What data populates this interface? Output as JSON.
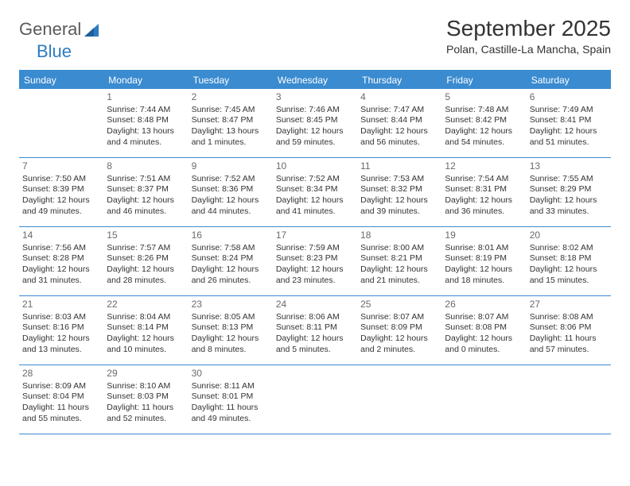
{
  "brand": {
    "general": "General",
    "blue": "Blue"
  },
  "title": "September 2025",
  "location": "Polan, Castille-La Mancha, Spain",
  "colors": {
    "accent": "#3a8bd0",
    "brand_blue": "#2d7bc0",
    "text": "#333333",
    "muted": "#6a6a6a",
    "background": "#ffffff"
  },
  "weekdays": [
    "Sunday",
    "Monday",
    "Tuesday",
    "Wednesday",
    "Thursday",
    "Friday",
    "Saturday"
  ],
  "weeks": [
    [
      {
        "n": "",
        "sr": "",
        "ss": "",
        "dl": ""
      },
      {
        "n": "1",
        "sr": "Sunrise: 7:44 AM",
        "ss": "Sunset: 8:48 PM",
        "dl": "Daylight: 13 hours and 4 minutes."
      },
      {
        "n": "2",
        "sr": "Sunrise: 7:45 AM",
        "ss": "Sunset: 8:47 PM",
        "dl": "Daylight: 13 hours and 1 minutes."
      },
      {
        "n": "3",
        "sr": "Sunrise: 7:46 AM",
        "ss": "Sunset: 8:45 PM",
        "dl": "Daylight: 12 hours and 59 minutes."
      },
      {
        "n": "4",
        "sr": "Sunrise: 7:47 AM",
        "ss": "Sunset: 8:44 PM",
        "dl": "Daylight: 12 hours and 56 minutes."
      },
      {
        "n": "5",
        "sr": "Sunrise: 7:48 AM",
        "ss": "Sunset: 8:42 PM",
        "dl": "Daylight: 12 hours and 54 minutes."
      },
      {
        "n": "6",
        "sr": "Sunrise: 7:49 AM",
        "ss": "Sunset: 8:41 PM",
        "dl": "Daylight: 12 hours and 51 minutes."
      }
    ],
    [
      {
        "n": "7",
        "sr": "Sunrise: 7:50 AM",
        "ss": "Sunset: 8:39 PM",
        "dl": "Daylight: 12 hours and 49 minutes."
      },
      {
        "n": "8",
        "sr": "Sunrise: 7:51 AM",
        "ss": "Sunset: 8:37 PM",
        "dl": "Daylight: 12 hours and 46 minutes."
      },
      {
        "n": "9",
        "sr": "Sunrise: 7:52 AM",
        "ss": "Sunset: 8:36 PM",
        "dl": "Daylight: 12 hours and 44 minutes."
      },
      {
        "n": "10",
        "sr": "Sunrise: 7:52 AM",
        "ss": "Sunset: 8:34 PM",
        "dl": "Daylight: 12 hours and 41 minutes."
      },
      {
        "n": "11",
        "sr": "Sunrise: 7:53 AM",
        "ss": "Sunset: 8:32 PM",
        "dl": "Daylight: 12 hours and 39 minutes."
      },
      {
        "n": "12",
        "sr": "Sunrise: 7:54 AM",
        "ss": "Sunset: 8:31 PM",
        "dl": "Daylight: 12 hours and 36 minutes."
      },
      {
        "n": "13",
        "sr": "Sunrise: 7:55 AM",
        "ss": "Sunset: 8:29 PM",
        "dl": "Daylight: 12 hours and 33 minutes."
      }
    ],
    [
      {
        "n": "14",
        "sr": "Sunrise: 7:56 AM",
        "ss": "Sunset: 8:28 PM",
        "dl": "Daylight: 12 hours and 31 minutes."
      },
      {
        "n": "15",
        "sr": "Sunrise: 7:57 AM",
        "ss": "Sunset: 8:26 PM",
        "dl": "Daylight: 12 hours and 28 minutes."
      },
      {
        "n": "16",
        "sr": "Sunrise: 7:58 AM",
        "ss": "Sunset: 8:24 PM",
        "dl": "Daylight: 12 hours and 26 minutes."
      },
      {
        "n": "17",
        "sr": "Sunrise: 7:59 AM",
        "ss": "Sunset: 8:23 PM",
        "dl": "Daylight: 12 hours and 23 minutes."
      },
      {
        "n": "18",
        "sr": "Sunrise: 8:00 AM",
        "ss": "Sunset: 8:21 PM",
        "dl": "Daylight: 12 hours and 21 minutes."
      },
      {
        "n": "19",
        "sr": "Sunrise: 8:01 AM",
        "ss": "Sunset: 8:19 PM",
        "dl": "Daylight: 12 hours and 18 minutes."
      },
      {
        "n": "20",
        "sr": "Sunrise: 8:02 AM",
        "ss": "Sunset: 8:18 PM",
        "dl": "Daylight: 12 hours and 15 minutes."
      }
    ],
    [
      {
        "n": "21",
        "sr": "Sunrise: 8:03 AM",
        "ss": "Sunset: 8:16 PM",
        "dl": "Daylight: 12 hours and 13 minutes."
      },
      {
        "n": "22",
        "sr": "Sunrise: 8:04 AM",
        "ss": "Sunset: 8:14 PM",
        "dl": "Daylight: 12 hours and 10 minutes."
      },
      {
        "n": "23",
        "sr": "Sunrise: 8:05 AM",
        "ss": "Sunset: 8:13 PM",
        "dl": "Daylight: 12 hours and 8 minutes."
      },
      {
        "n": "24",
        "sr": "Sunrise: 8:06 AM",
        "ss": "Sunset: 8:11 PM",
        "dl": "Daylight: 12 hours and 5 minutes."
      },
      {
        "n": "25",
        "sr": "Sunrise: 8:07 AM",
        "ss": "Sunset: 8:09 PM",
        "dl": "Daylight: 12 hours and 2 minutes."
      },
      {
        "n": "26",
        "sr": "Sunrise: 8:07 AM",
        "ss": "Sunset: 8:08 PM",
        "dl": "Daylight: 12 hours and 0 minutes."
      },
      {
        "n": "27",
        "sr": "Sunrise: 8:08 AM",
        "ss": "Sunset: 8:06 PM",
        "dl": "Daylight: 11 hours and 57 minutes."
      }
    ],
    [
      {
        "n": "28",
        "sr": "Sunrise: 8:09 AM",
        "ss": "Sunset: 8:04 PM",
        "dl": "Daylight: 11 hours and 55 minutes."
      },
      {
        "n": "29",
        "sr": "Sunrise: 8:10 AM",
        "ss": "Sunset: 8:03 PM",
        "dl": "Daylight: 11 hours and 52 minutes."
      },
      {
        "n": "30",
        "sr": "Sunrise: 8:11 AM",
        "ss": "Sunset: 8:01 PM",
        "dl": "Daylight: 11 hours and 49 minutes."
      },
      {
        "n": "",
        "sr": "",
        "ss": "",
        "dl": ""
      },
      {
        "n": "",
        "sr": "",
        "ss": "",
        "dl": ""
      },
      {
        "n": "",
        "sr": "",
        "ss": "",
        "dl": ""
      },
      {
        "n": "",
        "sr": "",
        "ss": "",
        "dl": ""
      }
    ]
  ]
}
